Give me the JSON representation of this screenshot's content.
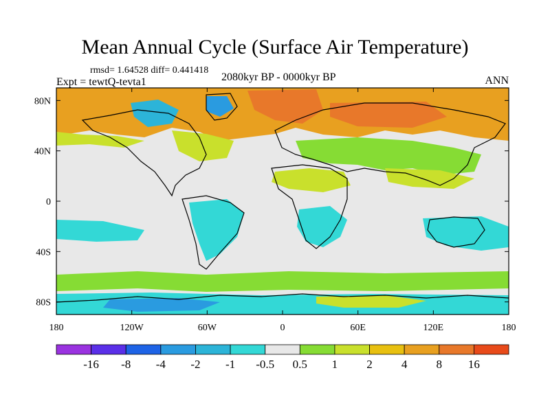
{
  "title": "Mean Annual Cycle (Surface Air Temperature)",
  "stats": "rmsd= 1.64528 diff= 0.441418",
  "experiment": "Expt = tewtQ-tevta1",
  "period": "2080kyr BP - 0000kyr BP",
  "season": "ANN",
  "axes": {
    "lon_ticks": [
      {
        "value": -180,
        "label": "180"
      },
      {
        "value": -120,
        "label": "120W"
      },
      {
        "value": -60,
        "label": "60W"
      },
      {
        "value": 0,
        "label": "0"
      },
      {
        "value": 60,
        "label": "60E"
      },
      {
        "value": 120,
        "label": "120E"
      },
      {
        "value": 180,
        "label": "180"
      }
    ],
    "lat_ticks": [
      {
        "value": 80,
        "label": "80N"
      },
      {
        "value": 40,
        "label": "40N"
      },
      {
        "value": 0,
        "label": "0"
      },
      {
        "value": -40,
        "label": "40S"
      },
      {
        "value": -80,
        "label": "80S"
      }
    ],
    "lon_range": [
      -180,
      180
    ],
    "lat_range": [
      -90,
      90
    ]
  },
  "colorbar": {
    "colors": [
      "#9a33e0",
      "#5a2fe8",
      "#1e63e6",
      "#2a9be0",
      "#2cb4d8",
      "#33d8d6",
      "#e8e8e8",
      "#86dc34",
      "#c9e02c",
      "#e8c010",
      "#e8a020",
      "#e8782a",
      "#e84a1a"
    ],
    "labels": [
      "-16",
      "-8",
      "-4",
      "-2",
      "-1",
      "-0.5",
      "0.5",
      "1",
      "2",
      "4",
      "8",
      "16"
    ]
  },
  "colors": {
    "neutral": "#e8e8e8",
    "ocean_background": "#e8e8e8",
    "coastline": "#000000"
  }
}
